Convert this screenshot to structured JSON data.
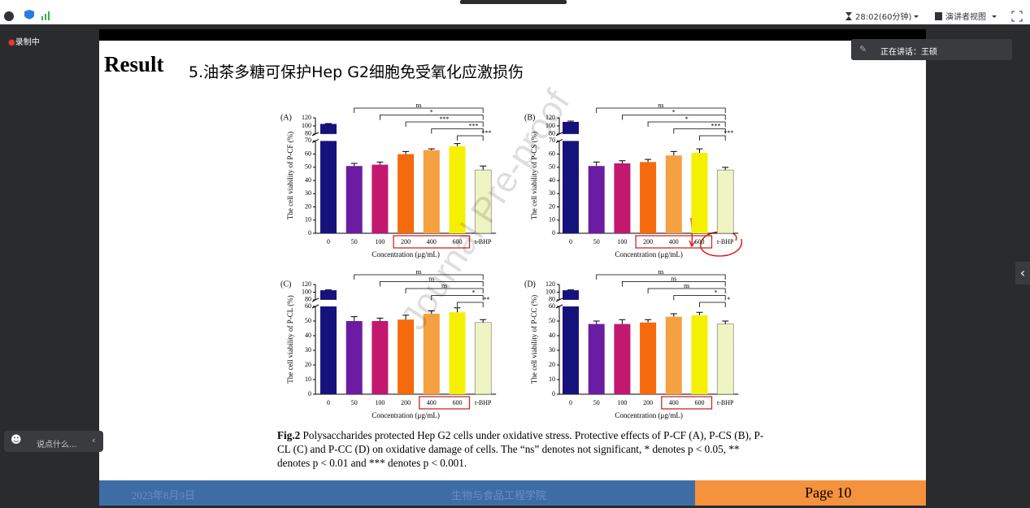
{
  "toolbar": {
    "timer": "28:02(60分钟)",
    "view": "演讲者视图"
  },
  "recording": "录制中",
  "speaker": "正在讲话：王硕",
  "chat_placeholder": "说点什么...",
  "slide": {
    "heading": "Result",
    "title": "5.油茶多糖可保护Hep G2细胞免受氧化应激损伤",
    "watermark": "Journal Pre-proof",
    "charts": [
      {
        "type": "bar",
        "panel": "(A)",
        "ylabel": "The cell viability of P-CF (%)",
        "xlabel": "Concentration (μg/mL)",
        "categories": [
          "0",
          "50",
          "100",
          "200",
          "400",
          "600",
          "t-BHP"
        ],
        "values": [
          105,
          51,
          52,
          60,
          63,
          66,
          48
        ],
        "errors": [
          1,
          2,
          2,
          2,
          1,
          2,
          3
        ],
        "colors": [
          "#16127c",
          "#6b1ca2",
          "#c2186f",
          "#f56a0c",
          "#f5a142",
          "#f5f000",
          "#eff5c2"
        ],
        "ylim": [
          0,
          120
        ],
        "ybreak": [
          70,
          80
        ],
        "yticks": [
          0,
          10,
          20,
          30,
          40,
          50,
          60,
          70,
          80,
          100,
          120
        ],
        "significance": [
          "ns",
          "*",
          "***",
          "***",
          "***"
        ]
      },
      {
        "type": "bar",
        "panel": "(B)",
        "ylabel": "The cell viability of P-CS (%)",
        "xlabel": "Concentration (μg/mL)",
        "categories": [
          "0",
          "50",
          "100",
          "200",
          "400",
          "600",
          "t-BHP"
        ],
        "values": [
          110,
          51,
          53,
          54,
          59,
          61,
          48
        ],
        "errors": [
          2,
          3,
          2,
          2,
          3,
          3,
          2
        ],
        "colors": [
          "#16127c",
          "#6b1ca2",
          "#c2186f",
          "#f56a0c",
          "#f5a142",
          "#f5f000",
          "#eff5c2"
        ],
        "ylim": [
          0,
          120
        ],
        "ybreak": [
          70,
          80
        ],
        "yticks": [
          0,
          10,
          20,
          30,
          40,
          50,
          60,
          70,
          80,
          100,
          120
        ],
        "significance": [
          "ns",
          "*",
          "*",
          "***",
          "***"
        ]
      },
      {
        "type": "bar",
        "panel": "(C)",
        "ylabel": "The cell viability of P-CL (%)",
        "xlabel": "Concentration (μg/mL)",
        "categories": [
          "0",
          "50",
          "100",
          "200",
          "400",
          "600",
          "t-BHP"
        ],
        "values": [
          105,
          50,
          50,
          51,
          55,
          56,
          49
        ],
        "errors": [
          1,
          3,
          2,
          3,
          2,
          3,
          2
        ],
        "colors": [
          "#16127c",
          "#6b1ca2",
          "#c2186f",
          "#f56a0c",
          "#f5a142",
          "#f5f000",
          "#eff5c2"
        ],
        "ylim": [
          0,
          120
        ],
        "ybreak": [
          60,
          80
        ],
        "yticks": [
          0,
          10,
          20,
          30,
          40,
          50,
          60,
          80,
          100,
          120
        ],
        "significance": [
          "ns",
          "ns",
          "ns",
          "*",
          "**"
        ]
      },
      {
        "type": "bar",
        "panel": "(D)",
        "ylabel": "The cell viability of P-CC (%)",
        "xlabel": "Concentration (μg/mL)",
        "categories": [
          "0",
          "50",
          "100",
          "200",
          "400",
          "600",
          "t-BHP"
        ],
        "values": [
          105,
          48,
          48,
          49,
          53,
          54,
          48
        ],
        "errors": [
          1,
          2,
          3,
          2,
          2,
          2,
          2
        ],
        "colors": [
          "#16127c",
          "#6b1ca2",
          "#c2186f",
          "#f56a0c",
          "#f5a142",
          "#f5f000",
          "#eff5c2"
        ],
        "ylim": [
          0,
          120
        ],
        "ybreak": [
          60,
          80
        ],
        "yticks": [
          0,
          10,
          20,
          30,
          40,
          50,
          60,
          80,
          100,
          120
        ],
        "significance": [
          "ns",
          "ns",
          "ns",
          "*",
          "*"
        ]
      }
    ],
    "caption": {
      "label": "Fig.2",
      "text": "Polysaccharides protected Hep G2 cells under oxidative stress. Protective effects of P-CF (A), P-CS (B), P-CL (C) and P-CC (D) on oxidative damage of cells. The “ns” denotes not significant, * denotes p < 0.05, ** denotes p < 0.01 and *** denotes p < 0.001."
    },
    "footer": {
      "date": "2023年8月9日",
      "school": "生物与食品工程学院",
      "page": "Page 10"
    }
  }
}
